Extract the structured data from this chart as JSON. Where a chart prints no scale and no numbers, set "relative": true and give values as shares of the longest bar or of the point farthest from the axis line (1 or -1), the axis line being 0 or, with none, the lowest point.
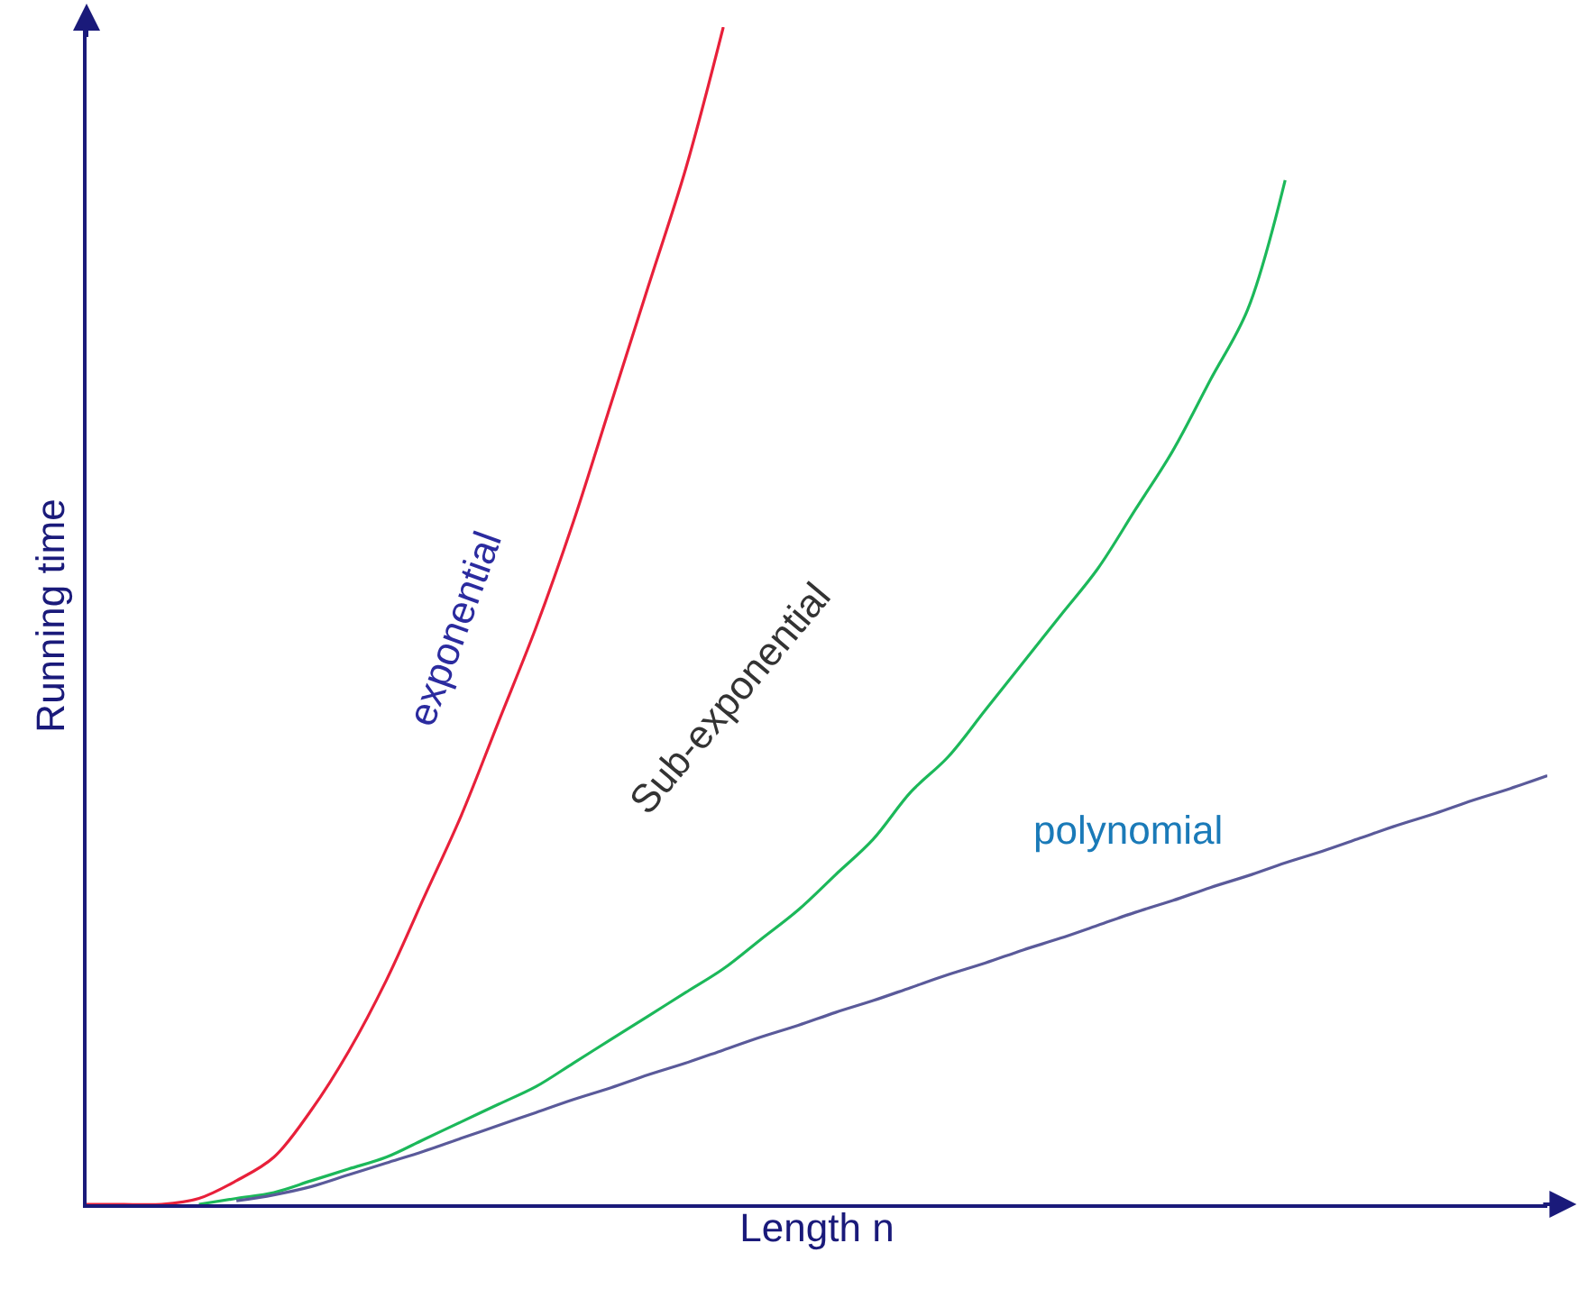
{
  "chart_data": {
    "type": "line",
    "relative": true,
    "xlabel": "Length n",
    "ylabel": "Running time",
    "tick_labels": false,
    "legend": false,
    "marker": "none",
    "line_style": "solid",
    "categories": [
      null,
      null,
      null,
      null,
      null,
      null,
      null,
      null,
      null,
      null,
      null,
      null,
      null,
      null,
      null,
      null,
      null,
      null,
      null,
      null,
      null,
      null,
      null,
      null,
      null,
      null,
      null,
      null,
      null,
      null,
      null,
      null,
      null,
      null,
      null,
      null,
      null,
      null,
      null,
      null
    ],
    "series": [
      {
        "name": "exponential",
        "color": "#e8203a",
        "values": [
          0,
          0,
          0,
          0.005,
          0.02,
          0.04,
          0.08,
          0.13,
          0.19,
          0.26,
          0.33,
          0.41,
          0.49,
          0.58,
          0.68,
          0.78,
          0.88,
          1.0,
          null,
          null,
          null,
          null,
          null,
          null,
          null,
          null,
          null,
          null,
          null,
          null,
          null,
          null,
          null,
          null,
          null,
          null,
          null,
          null,
          null,
          null
        ]
      },
      {
        "name": "Sub-exponential",
        "color": "#1cb85a",
        "values": [
          null,
          null,
          null,
          0,
          0.005,
          0.01,
          0.02,
          0.03,
          0.04,
          0.055,
          0.07,
          0.085,
          0.1,
          0.12,
          0.14,
          0.16,
          0.18,
          0.2,
          0.225,
          0.25,
          0.28,
          0.31,
          0.35,
          0.38,
          0.42,
          0.46,
          0.5,
          0.54,
          0.59,
          0.64,
          0.7,
          0.76,
          0.87,
          null,
          null,
          null,
          null,
          null,
          null,
          null
        ]
      },
      {
        "name": "polynomial",
        "color": "#5a5a9a",
        "values": [
          null,
          null,
          null,
          null,
          0.003,
          0.008,
          0.015,
          0.025,
          0.035,
          0.045,
          0.056,
          0.067,
          0.078,
          0.089,
          0.099,
          0.11,
          0.12,
          0.131,
          0.142,
          0.152,
          0.163,
          0.173,
          0.184,
          0.195,
          0.205,
          0.216,
          0.226,
          0.237,
          0.248,
          0.258,
          0.269,
          0.279,
          0.29,
          0.3,
          0.311,
          0.322,
          0.332,
          0.343,
          0.353,
          0.364
        ]
      }
    ]
  }
}
